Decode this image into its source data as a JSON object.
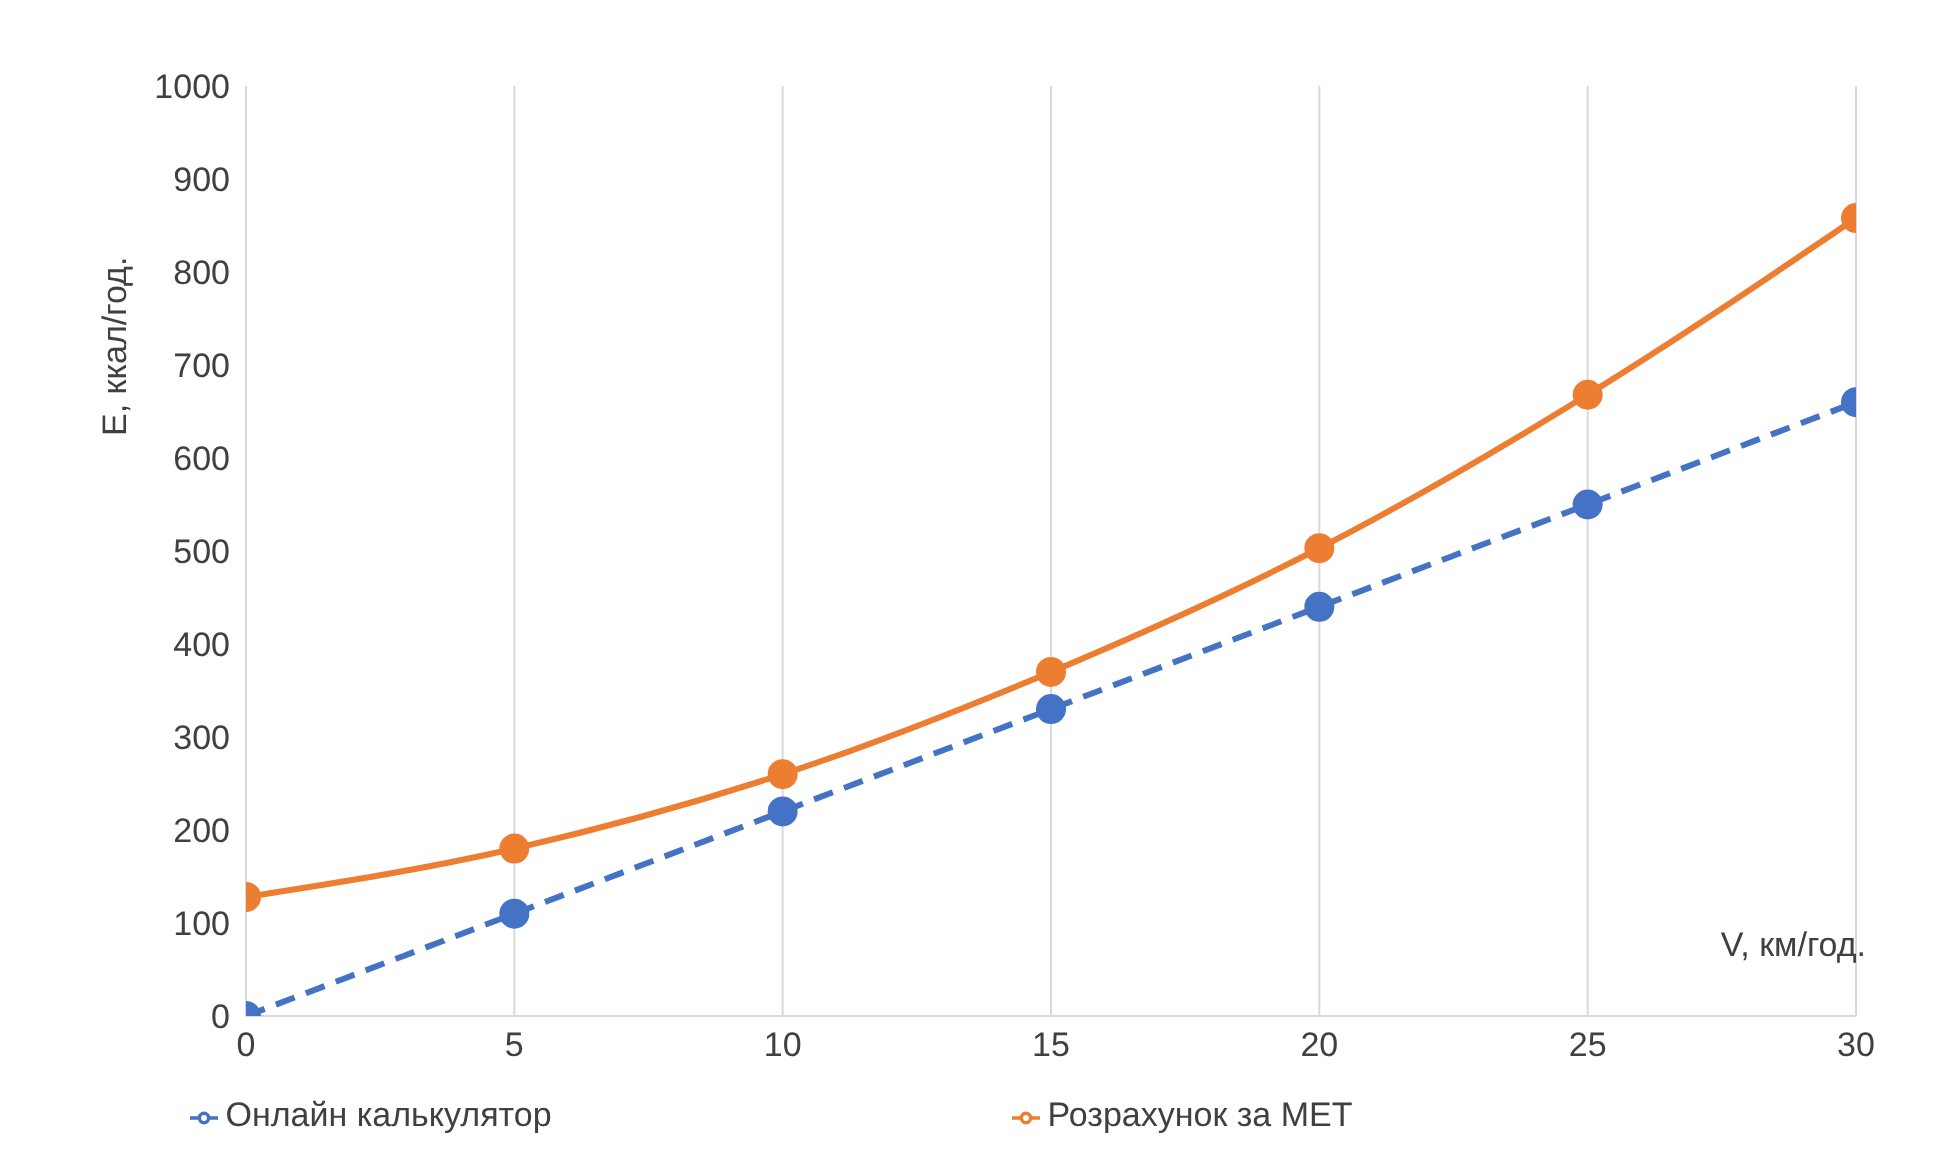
{
  "chart_data": {
    "type": "line",
    "xlabel": "V, км/год.",
    "ylabel": "E, ккал/год.",
    "x": [
      0,
      5,
      10,
      15,
      20,
      25,
      30
    ],
    "series": [
      {
        "name": "Онлайн калькулятор",
        "color": "#4472c4",
        "line_style": "dashed",
        "values": [
          0,
          110,
          220,
          330,
          440,
          550,
          660
        ]
      },
      {
        "name": "Розрахунок за МЕТ",
        "color": "#ed7d31",
        "line_style": "solid",
        "values": [
          128,
          180,
          260,
          370,
          503,
          668,
          858
        ]
      }
    ],
    "xlim": [
      0,
      30
    ],
    "xticks": [
      0,
      5,
      10,
      15,
      20,
      25,
      30
    ],
    "ylim": [
      0,
      1000
    ],
    "yticks": [
      0,
      100,
      200,
      300,
      400,
      500,
      600,
      700,
      800,
      900,
      1000
    ],
    "grid": "x",
    "legend": "bottom",
    "marker": "circle"
  }
}
